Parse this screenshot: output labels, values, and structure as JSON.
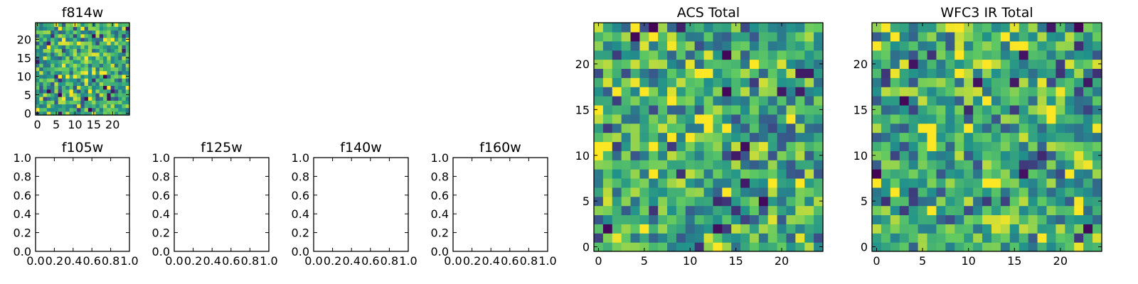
{
  "colormap": [
    "#440154",
    "#3b528b",
    "#21918c",
    "#5ec962",
    "#fde725"
  ],
  "chart_data": [
    {
      "id": "f814w",
      "type": "heatmap",
      "title": "f814w",
      "xticks": [
        "0",
        "5",
        "10",
        "15",
        "20"
      ],
      "yticks": [
        "0",
        "5",
        "10",
        "15",
        "20"
      ],
      "xlim": [
        -0.5,
        24.5
      ],
      "ylim": [
        -0.5,
        24.5
      ],
      "grid_size": [
        25,
        25
      ],
      "seed": 814
    },
    {
      "id": "f105w",
      "type": "heatmap",
      "title": "f105w",
      "xticks": [
        "0.0",
        "0.2",
        "0.4",
        "0.6",
        "0.8",
        "1.0"
      ],
      "yticks": [
        "0.0",
        "0.2",
        "0.4",
        "0.6",
        "0.8",
        "1.0"
      ],
      "xlim": [
        0,
        1
      ],
      "ylim": [
        0,
        1
      ],
      "empty": true
    },
    {
      "id": "f125w",
      "type": "heatmap",
      "title": "f125w",
      "xticks": [
        "0.0",
        "0.2",
        "0.4",
        "0.6",
        "0.8",
        "1.0"
      ],
      "yticks": [
        "0.0",
        "0.2",
        "0.4",
        "0.6",
        "0.8",
        "1.0"
      ],
      "xlim": [
        0,
        1
      ],
      "ylim": [
        0,
        1
      ],
      "empty": true
    },
    {
      "id": "f140w",
      "type": "heatmap",
      "title": "f140w",
      "xticks": [
        "0.0",
        "0.2",
        "0.4",
        "0.6",
        "0.8",
        "1.0"
      ],
      "yticks": [
        "0.0",
        "0.2",
        "0.4",
        "0.6",
        "0.8",
        "1.0"
      ],
      "xlim": [
        0,
        1
      ],
      "ylim": [
        0,
        1
      ],
      "empty": true
    },
    {
      "id": "f160w",
      "type": "heatmap",
      "title": "f160w",
      "xticks": [
        "0.0",
        "0.2",
        "0.4",
        "0.6",
        "0.8",
        "1.0"
      ],
      "yticks": [
        "0.0",
        "0.2",
        "0.4",
        "0.6",
        "0.8",
        "1.0"
      ],
      "xlim": [
        0,
        1
      ],
      "ylim": [
        0,
        1
      ],
      "empty": true
    },
    {
      "id": "acs-total",
      "type": "heatmap",
      "title": "ACS Total",
      "xticks": [
        "0",
        "5",
        "10",
        "15",
        "20"
      ],
      "yticks": [
        "0",
        "5",
        "10",
        "15",
        "20"
      ],
      "xlim": [
        -0.5,
        24.5
      ],
      "ylim": [
        -0.5,
        24.5
      ],
      "grid_size": [
        25,
        25
      ],
      "seed": 1207
    },
    {
      "id": "wfc3-ir-total",
      "type": "heatmap",
      "title": "WFC3 IR Total",
      "xticks": [
        "0",
        "5",
        "10",
        "15",
        "20"
      ],
      "yticks": [
        "0",
        "5",
        "10",
        "15",
        "20"
      ],
      "xlim": [
        -0.5,
        24.5
      ],
      "ylim": [
        -0.5,
        24.5
      ],
      "grid_size": [
        25,
        25
      ],
      "seed": 3301
    }
  ]
}
